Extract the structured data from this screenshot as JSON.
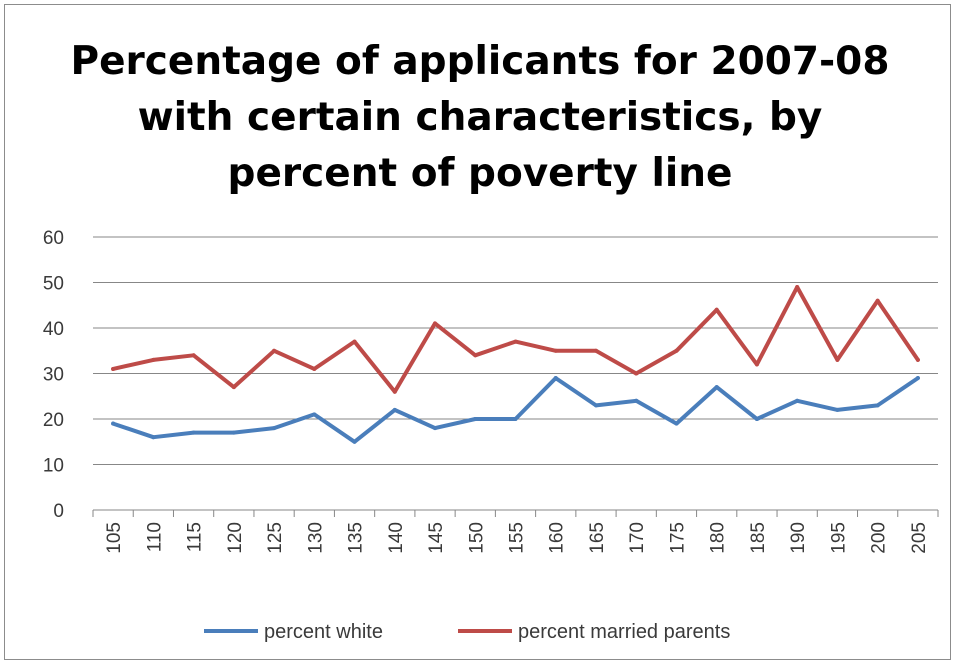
{
  "chart_data": {
    "type": "line",
    "title_lines": [
      "Percentage of applicants for 2007-08",
      "with certain characteristics, by",
      "percent of poverty line"
    ],
    "xlabel": "",
    "ylabel": "",
    "categories": [
      "105",
      "110",
      "115",
      "120",
      "125",
      "130",
      "135",
      "140",
      "145",
      "150",
      "155",
      "160",
      "165",
      "170",
      "175",
      "180",
      "185",
      "190",
      "195",
      "200",
      "205"
    ],
    "ylim": [
      0,
      60
    ],
    "yticks": [
      "0",
      "10",
      "20",
      "30",
      "40",
      "50",
      "60"
    ],
    "grid": true,
    "legend_position": "bottom",
    "series": [
      {
        "name": "percent white",
        "color": "#4a7ebb",
        "values": [
          19,
          16,
          17,
          17,
          18,
          21,
          15,
          22,
          18,
          20,
          20,
          29,
          23,
          24,
          19,
          27,
          20,
          24,
          22,
          23,
          29
        ]
      },
      {
        "name": "percent married parents",
        "color": "#be4b48",
        "values": [
          31,
          33,
          34,
          27,
          35,
          31,
          37,
          26,
          41,
          34,
          37,
          35,
          35,
          30,
          35,
          44,
          32,
          49,
          33,
          46,
          33
        ]
      }
    ]
  }
}
